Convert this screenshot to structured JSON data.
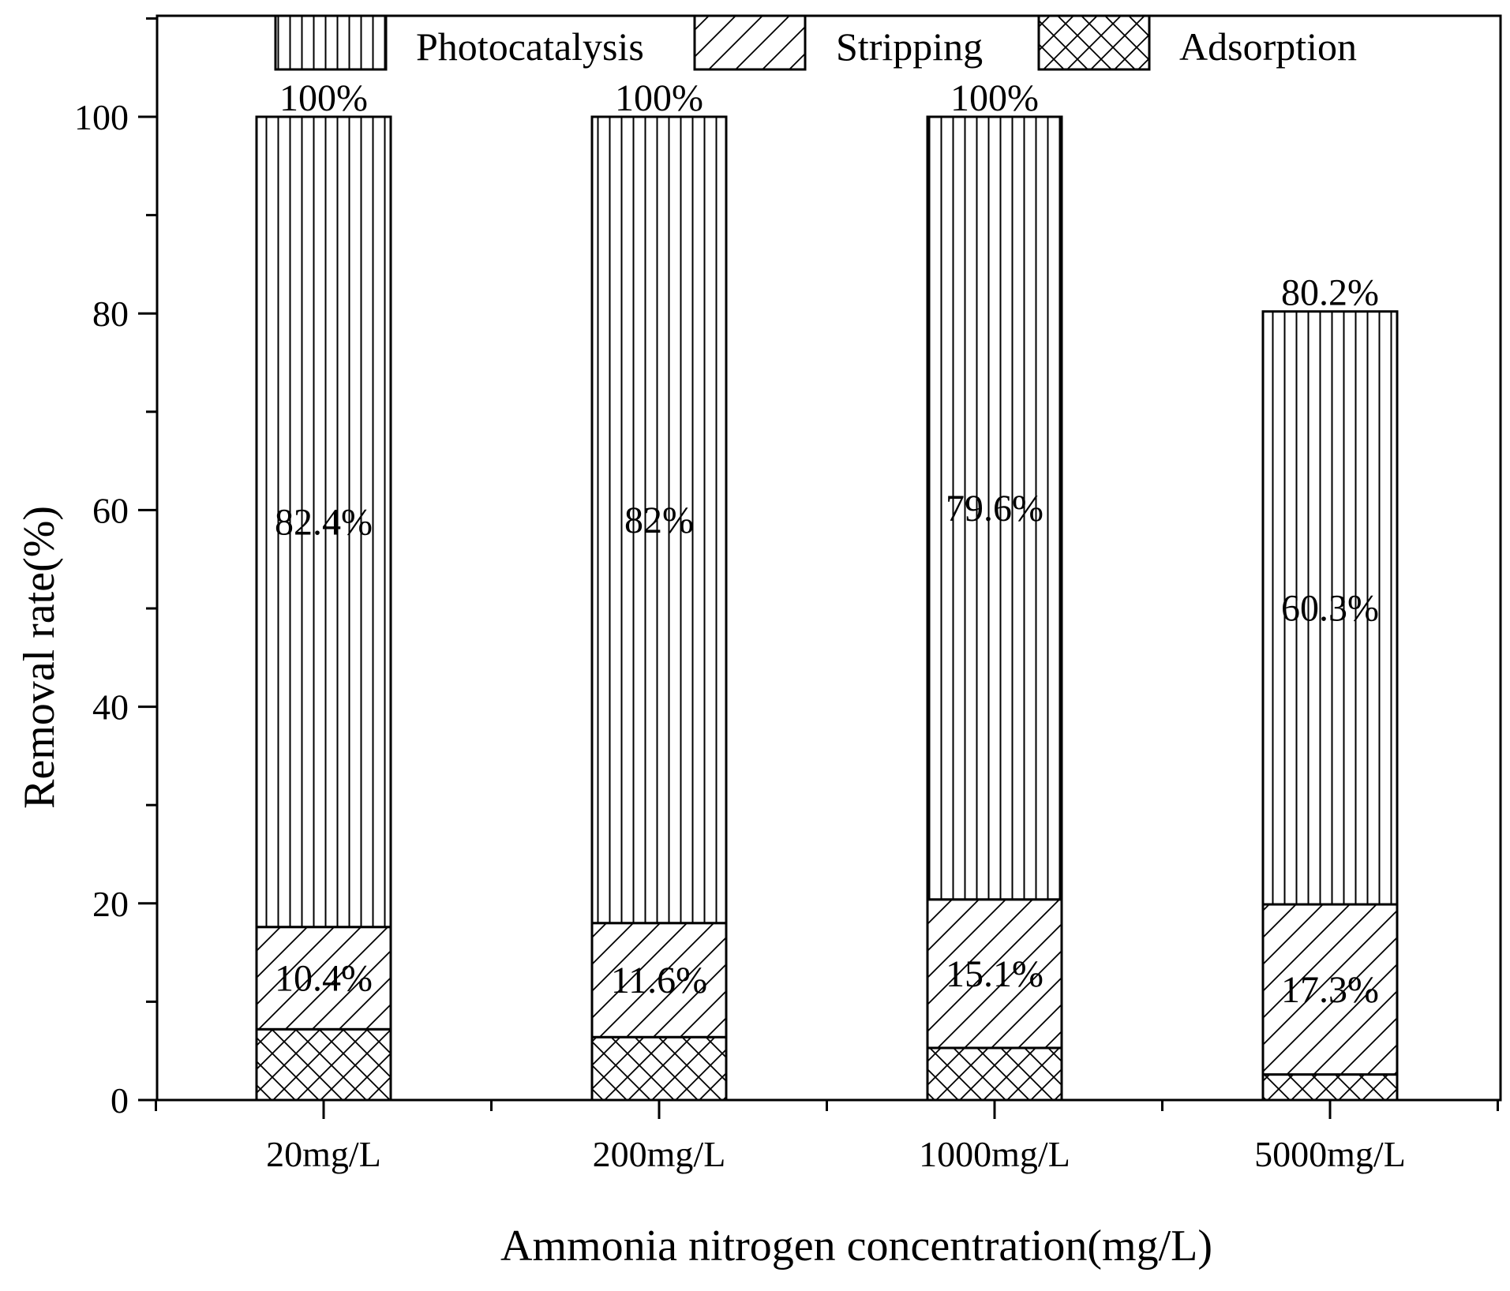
{
  "chart_data": {
    "type": "stacked-bar",
    "title": "",
    "xlabel": "Ammonia nitrogen concentration(mg/L)",
    "ylabel": "Removal rate(%)",
    "ylim": [
      0,
      110
    ],
    "yticks": [
      0,
      20,
      40,
      60,
      80,
      100
    ],
    "categories": [
      "20mg/L",
      "200mg/L",
      "1000mg/L",
      "5000mg/L"
    ],
    "series": [
      {
        "name": "Adsorption",
        "pattern": "crosshatch",
        "values": [
          7.2,
          6.4,
          5.3,
          2.6
        ]
      },
      {
        "name": "Stripping",
        "pattern": "diagonal",
        "values": [
          10.4,
          11.6,
          15.1,
          17.3
        ]
      },
      {
        "name": "Photocatalysis",
        "pattern": "vertical",
        "values": [
          82.4,
          82.0,
          79.6,
          60.3
        ]
      }
    ],
    "segment_labels": {
      "Stripping": [
        "10.4%",
        "11.6%",
        "15.1%",
        "17.3%"
      ],
      "Photocatalysis": [
        "82.4%",
        "82%",
        "79.6%",
        "60.3%"
      ]
    },
    "total_labels": [
      "100%",
      "100%",
      "100%",
      "80.2%"
    ],
    "legend": [
      {
        "name": "Photocatalysis",
        "pattern": "vertical"
      },
      {
        "name": "Stripping",
        "pattern": "diagonal"
      },
      {
        "name": "Adsorption",
        "pattern": "crosshatch"
      }
    ],
    "legend_position": "top",
    "grid": false
  }
}
